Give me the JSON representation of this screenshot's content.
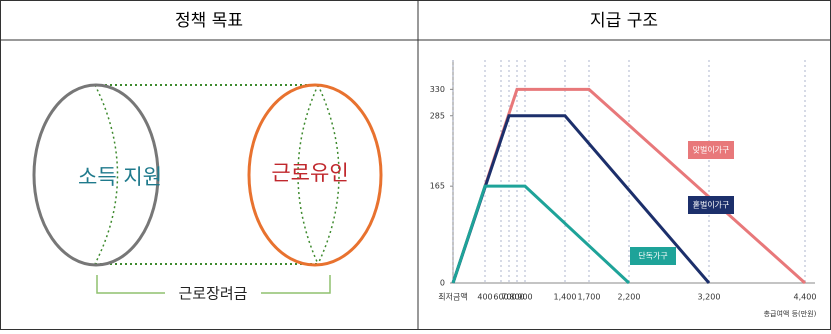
{
  "table": {
    "headers": [
      "정책 목표",
      "지급 구조"
    ]
  },
  "diagram": {
    "left_label": "소득 지원",
    "right_label": "근로유인",
    "bracket_label": "근로장려금"
  },
  "chart_data": {
    "type": "line",
    "x_label": "총급여액 등(만원)",
    "xlim": [
      0,
      4400
    ],
    "ylim": [
      0,
      380
    ],
    "xticks": [
      {
        "value": 0,
        "label": "최저금액"
      },
      400,
      600,
      700,
      800,
      900,
      {
        "value": 1400,
        "label": "1,400"
      },
      {
        "value": 1700,
        "label": "1,700"
      },
      {
        "value": 2200,
        "label": "2,200"
      },
      {
        "value": 3200,
        "label": "3,200"
      },
      {
        "value": 4400,
        "label": "4,400"
      }
    ],
    "yticks": [
      0,
      165,
      285,
      330
    ],
    "grid": true,
    "series": [
      {
        "name": "맞벌이가구",
        "color": "#e8787a",
        "x": [
          0,
          800,
          1700,
          4400
        ],
        "values": [
          0,
          330,
          330,
          0
        ]
      },
      {
        "name": "홑벌이가구",
        "color": "#1c2f6b",
        "x": [
          0,
          700,
          1400,
          3200
        ],
        "values": [
          0,
          285,
          285,
          0
        ]
      },
      {
        "name": "단독가구",
        "color": "#1ea399",
        "x": [
          0,
          400,
          900,
          2200
        ],
        "values": [
          0,
          165,
          165,
          0
        ]
      }
    ]
  }
}
